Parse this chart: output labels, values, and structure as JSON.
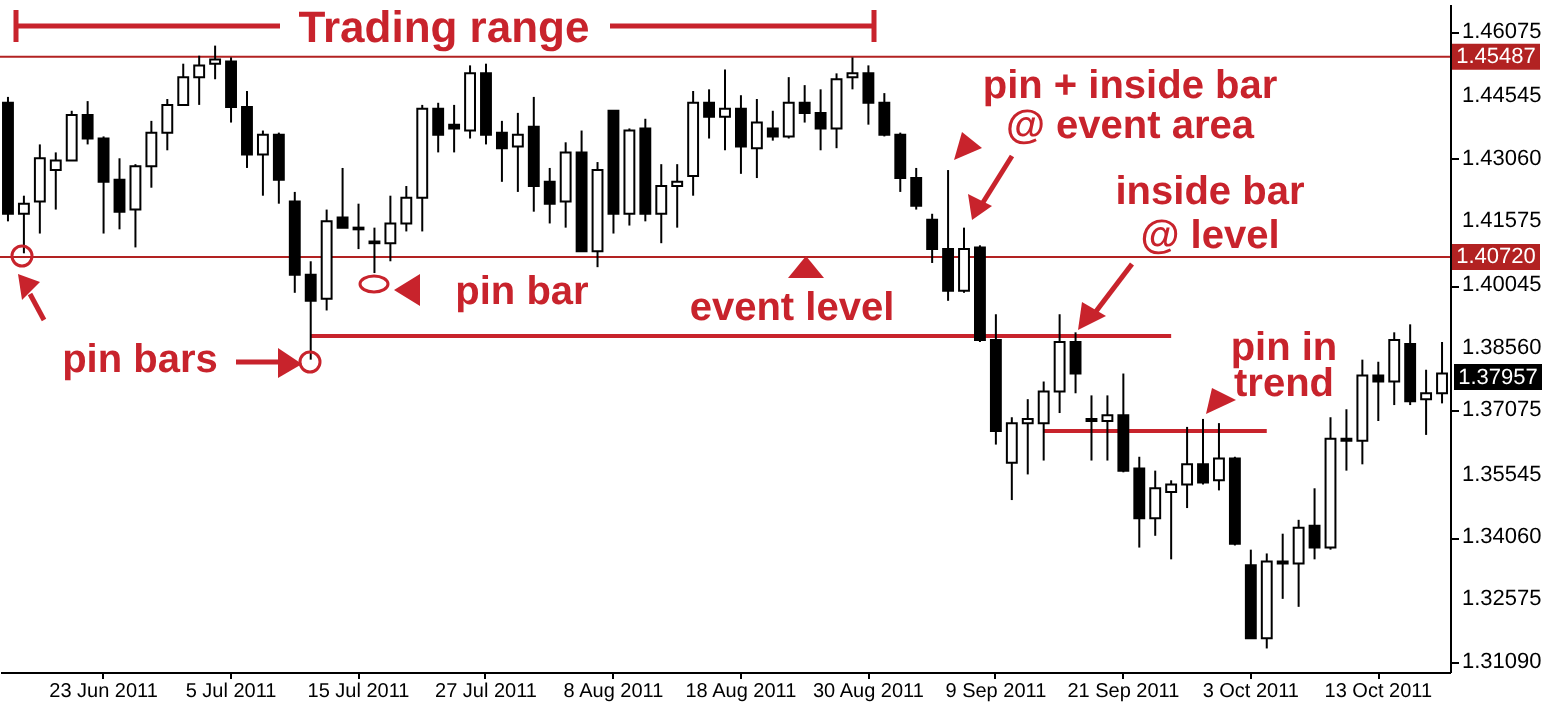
{
  "chart_data": {
    "type": "candlestick",
    "categories": [
      null,
      null,
      null,
      null,
      null,
      null,
      "23 Jun 2011",
      null,
      null,
      null,
      null,
      null,
      null,
      null,
      "5 Jul 2011",
      null,
      null,
      null,
      null,
      null,
      null,
      null,
      "15 Jul 2011",
      null,
      null,
      null,
      null,
      null,
      null,
      null,
      "27 Jul 2011",
      null,
      null,
      null,
      null,
      null,
      null,
      null,
      "8 Aug 2011",
      null,
      null,
      null,
      null,
      null,
      null,
      null,
      "18 Aug 2011",
      null,
      null,
      null,
      null,
      null,
      null,
      null,
      "30 Aug 2011",
      null,
      null,
      null,
      null,
      null,
      null,
      null,
      "9 Sep 2011",
      null,
      null,
      null,
      null,
      null,
      null,
      null,
      "21 Sep 2011",
      null,
      null,
      null,
      null,
      null,
      null,
      null,
      "3 Oct 2011",
      null,
      null,
      null,
      null,
      null,
      null,
      null,
      "13 Oct 2011",
      null,
      null,
      null,
      null
    ],
    "ohlc": [
      [
        1.4439,
        1.4453,
        1.4157,
        1.4175
      ],
      [
        1.4175,
        1.4218,
        1.4081,
        1.4199
      ],
      [
        1.4204,
        1.434,
        1.4128,
        1.4307
      ],
      [
        1.4279,
        1.4321,
        1.4185,
        1.4302
      ],
      [
        1.4302,
        1.442,
        1.4302,
        1.441
      ],
      [
        1.441,
        1.4443,
        1.434,
        1.4354
      ],
      [
        1.4354,
        1.4359,
        1.4128,
        1.4251
      ],
      [
        1.4256,
        1.4307,
        1.4138,
        1.418
      ],
      [
        1.4185,
        1.4293,
        1.4095,
        1.4288
      ],
      [
        1.4288,
        1.4396,
        1.4237,
        1.4368
      ],
      [
        1.4368,
        1.4448,
        1.4326,
        1.4434
      ],
      [
        1.4434,
        1.4532,
        1.4434,
        1.45
      ],
      [
        1.45,
        1.4551,
        1.4434,
        1.4528
      ],
      [
        1.4532,
        1.4575,
        1.4495,
        1.4542
      ],
      [
        1.4537,
        1.4547,
        1.4392,
        1.4429
      ],
      [
        1.4429,
        1.4467,
        1.4284,
        1.4316
      ],
      [
        1.4316,
        1.4373,
        1.4218,
        1.4363
      ],
      [
        1.4363,
        1.4368,
        1.4199,
        1.4256
      ],
      [
        1.4204,
        1.4227,
        1.3987,
        1.403
      ],
      [
        1.403,
        1.4062,
        1.3828,
        1.3968
      ],
      [
        1.3973,
        1.4185,
        1.3945,
        1.4157
      ],
      [
        1.4166,
        1.4284,
        1.4142,
        1.4142
      ],
      [
        1.4142,
        1.4199,
        1.4091,
        1.4138
      ],
      [
        1.4105,
        1.4142,
        1.4034,
        1.4109
      ],
      [
        1.4105,
        1.4218,
        1.4062,
        1.4152
      ],
      [
        1.4152,
        1.4241,
        1.4133,
        1.4213
      ],
      [
        1.4213,
        1.4434,
        1.4133,
        1.4425
      ],
      [
        1.4425,
        1.4439,
        1.4321,
        1.4363
      ],
      [
        1.4387,
        1.4434,
        1.4321,
        1.4378
      ],
      [
        1.4373,
        1.4528,
        1.4354,
        1.4509
      ],
      [
        1.4509,
        1.4532,
        1.434,
        1.4363
      ],
      [
        1.4368,
        1.4396,
        1.4251,
        1.4331
      ],
      [
        1.4335,
        1.4415,
        1.4227,
        1.4363
      ],
      [
        1.4382,
        1.4453,
        1.418,
        1.4241
      ],
      [
        1.4251,
        1.4284,
        1.4152,
        1.4199
      ],
      [
        1.4204,
        1.4345,
        1.4142,
        1.4321
      ],
      [
        1.4321,
        1.4373,
        1.4086,
        1.4086
      ],
      [
        1.4086,
        1.4298,
        1.4048,
        1.4279
      ],
      [
        1.442,
        1.442,
        1.4128,
        1.4175
      ],
      [
        1.4175,
        1.4378,
        1.4147,
        1.4373
      ],
      [
        1.4378,
        1.4401,
        1.4157,
        1.4175
      ],
      [
        1.4175,
        1.4293,
        1.4105,
        1.4241
      ],
      [
        1.4241,
        1.4293,
        1.4142,
        1.4251
      ],
      [
        1.4265,
        1.4467,
        1.4218,
        1.4439
      ],
      [
        1.4439,
        1.4471,
        1.4354,
        1.4406
      ],
      [
        1.4406,
        1.4518,
        1.4326,
        1.4425
      ],
      [
        1.4425,
        1.4457,
        1.427,
        1.4335
      ],
      [
        1.4331,
        1.4448,
        1.426,
        1.4392
      ],
      [
        1.4378,
        1.442,
        1.4349,
        1.4359
      ],
      [
        1.4359,
        1.45,
        1.4354,
        1.4439
      ],
      [
        1.4439,
        1.4481,
        1.4392,
        1.4415
      ],
      [
        1.4415,
        1.4471,
        1.4326,
        1.4378
      ],
      [
        1.4378,
        1.4509,
        1.4331,
        1.4495
      ],
      [
        1.45,
        1.4547,
        1.4471,
        1.4509
      ],
      [
        1.4509,
        1.4528,
        1.4387,
        1.4439
      ],
      [
        1.4439,
        1.4462,
        1.4359,
        1.4363
      ],
      [
        1.4363,
        1.4368,
        1.4227,
        1.426
      ],
      [
        1.426,
        1.4284,
        1.4185,
        1.4194
      ],
      [
        1.4161,
        1.4175,
        1.4058,
        1.4091
      ],
      [
        1.4091,
        1.4279,
        1.3968,
        1.3992
      ],
      [
        1.3992,
        1.4142,
        1.3987,
        1.4091
      ],
      [
        1.4095,
        1.41,
        1.387,
        1.3875
      ],
      [
        1.3875,
        1.3936,
        1.3626,
        1.3658
      ],
      [
        1.3583,
        1.3691,
        1.3494,
        1.3677
      ],
      [
        1.3677,
        1.3734,
        1.3555,
        1.3687
      ],
      [
        1.3677,
        1.3776,
        1.3588,
        1.3752
      ],
      [
        1.3752,
        1.3936,
        1.3701,
        1.387
      ],
      [
        1.387,
        1.3893,
        1.3748,
        1.3795
      ],
      [
        1.3682,
        1.3743,
        1.3588,
        1.3687
      ],
      [
        1.3682,
        1.3743,
        1.3588,
        1.3696
      ],
      [
        1.3696,
        1.3795,
        1.356,
        1.3564
      ],
      [
        1.3569,
        1.3597,
        1.3381,
        1.3451
      ],
      [
        1.3451,
        1.3564,
        1.3409,
        1.3522
      ],
      [
        1.3513,
        1.3541,
        1.3353,
        1.3531
      ],
      [
        1.3531,
        1.3668,
        1.3475,
        1.3579
      ],
      [
        1.3579,
        1.3687,
        1.3531,
        1.3536
      ],
      [
        1.3541,
        1.3677,
        1.3517,
        1.3593
      ],
      [
        1.3593,
        1.3597,
        1.3386,
        1.339
      ],
      [
        1.3339,
        1.3376,
        1.3165,
        1.3165
      ],
      [
        1.3165,
        1.3367,
        1.3141,
        1.3348
      ],
      [
        1.3343,
        1.3414,
        1.3259,
        1.3348
      ],
      [
        1.3343,
        1.3447,
        1.324,
        1.3428
      ],
      [
        1.3433,
        1.3522,
        1.3353,
        1.3381
      ],
      [
        1.3381,
        1.3691,
        1.3376,
        1.364
      ],
      [
        1.364,
        1.371,
        1.3564,
        1.3635
      ],
      [
        1.3635,
        1.3828,
        1.3579,
        1.379
      ],
      [
        1.379,
        1.3823,
        1.3682,
        1.3776
      ],
      [
        1.3776,
        1.3893,
        1.372,
        1.3875
      ],
      [
        1.3865,
        1.3912,
        1.372,
        1.3729
      ],
      [
        1.3734,
        1.3804,
        1.3649,
        1.3748
      ],
      [
        1.3748,
        1.387,
        1.3724,
        1.3795
      ]
    ],
    "series": [
      {
        "type": "line",
        "color": "#c8232c",
        "values": [
          null,
          null,
          null,
          null,
          null,
          null,
          null,
          null,
          null,
          null,
          null,
          null,
          null,
          null,
          null,
          null,
          null,
          null,
          null,
          1.3884,
          1.3884,
          1.3884,
          1.3884,
          1.3884,
          1.3884,
          1.3884,
          1.3884,
          1.3884,
          1.3884,
          1.3884,
          1.3884,
          1.3884,
          1.3884,
          1.3884,
          1.3884,
          1.3884,
          1.3884,
          1.3884,
          1.3884,
          1.3884,
          1.3884,
          1.3884,
          1.3884,
          1.3884,
          1.3884,
          1.3884,
          1.3884,
          1.3884,
          1.3884,
          1.3884,
          1.3884,
          1.3884,
          1.3884,
          1.3884,
          1.3884,
          1.3884,
          1.3884,
          1.3884,
          1.3884,
          1.3884,
          1.3884,
          1.3884,
          1.3884,
          1.3884,
          1.3884,
          1.3884,
          1.3884,
          1.3884,
          1.3884,
          1.3884,
          1.3884,
          1.3884,
          1.3884,
          1.3884,
          null,
          null,
          null,
          null,
          null,
          null,
          null,
          null,
          null,
          null,
          null,
          null,
          null,
          null,
          null,
          null,
          null
        ]
      },
      {
        "type": "line",
        "color": "#c8232c",
        "values": [
          null,
          null,
          null,
          null,
          null,
          null,
          null,
          null,
          null,
          null,
          null,
          null,
          null,
          null,
          null,
          null,
          null,
          null,
          null,
          null,
          null,
          null,
          null,
          null,
          null,
          null,
          null,
          null,
          null,
          null,
          null,
          null,
          null,
          null,
          null,
          null,
          null,
          null,
          null,
          null,
          null,
          null,
          null,
          null,
          null,
          null,
          null,
          null,
          null,
          null,
          null,
          null,
          null,
          null,
          null,
          null,
          null,
          null,
          null,
          null,
          null,
          null,
          null,
          null,
          null,
          1.3658,
          1.3658,
          1.3658,
          1.3658,
          1.3658,
          1.3658,
          1.3658,
          1.3658,
          1.3658,
          1.3658,
          1.3658,
          1.3658,
          1.3658,
          1.3658,
          1.3658,
          null,
          null,
          null,
          null,
          null,
          null,
          null,
          null,
          null,
          null,
          null
        ]
      }
    ],
    "ylim": [
      1.3085,
      1.4674
    ],
    "yticks": [
      1.46075,
      1.44545,
      {
        "value": 1.4306,
        "label": "1.43060"
      },
      1.41575,
      1.40045,
      {
        "value": 1.3856,
        "label": "1.38560"
      },
      1.37075,
      1.35545,
      {
        "value": 1.3406,
        "label": "1.34060"
      },
      1.32575,
      {
        "value": 1.3109,
        "label": "1.31090"
      }
    ],
    "ref_lines": [
      {
        "axis": "y",
        "value": 1.45487,
        "label": "1.45487",
        "color": "#b22222"
      },
      {
        "axis": "y",
        "value": 1.4072,
        "label": "1.40720",
        "color": "#b22222"
      }
    ],
    "annotations": [
      "Trading range",
      "pin bars",
      "pin bar",
      "event level",
      "pin + inside bar\n@ event area",
      "inside bar\n@ level",
      "pin in\ntrend",
      "1.37957"
    ]
  }
}
